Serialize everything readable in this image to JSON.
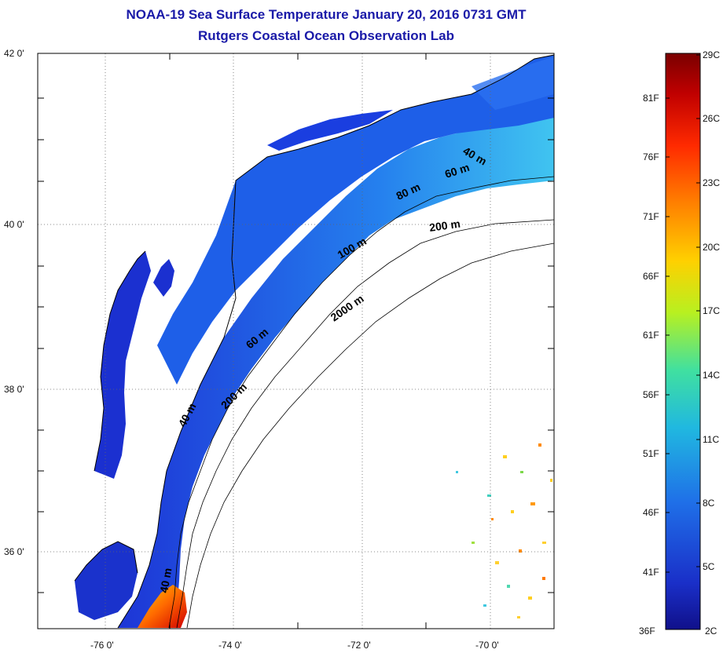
{
  "header": {
    "title": "NOAA-19 Sea Surface Temperature January 20, 2016 0731 GMT",
    "subtitle": "Rutgers Coastal Ocean Observation Lab"
  },
  "map": {
    "lon_range": [
      -77,
      -69
    ],
    "lat_range": [
      35,
      42
    ],
    "lon_ticks": [
      "-76 0'",
      "-74 0'",
      "-72 0'",
      "-70 0'"
    ],
    "lat_ticks": [
      "42 0'",
      "40 0'",
      "38 0'",
      "36 0'"
    ],
    "land_color": "#ffffff",
    "water_base_color": "#1e3fd8",
    "contour_labels": [
      "40 m",
      "60 m",
      "80 m",
      "100 m",
      "200 m",
      "2000 m",
      "60 m",
      "200 m",
      "40 m",
      "40 m"
    ]
  },
  "colorbar": {
    "celsius_labels": [
      "29C",
      "26C",
      "23C",
      "20C",
      "17C",
      "14C",
      "11C",
      "8C",
      "5C",
      "2C"
    ],
    "fahrenheit_labels": [
      "81F",
      "76F",
      "71F",
      "66F",
      "61F",
      "56F",
      "51F",
      "46F",
      "41F",
      "36F"
    ],
    "colors": [
      "#7a0000",
      "#c00000",
      "#ff2a00",
      "#ff8000",
      "#ffd000",
      "#b8f020",
      "#40e0a0",
      "#20b8e0",
      "#1f6fe8",
      "#1a2fc8",
      "#10108a"
    ]
  }
}
